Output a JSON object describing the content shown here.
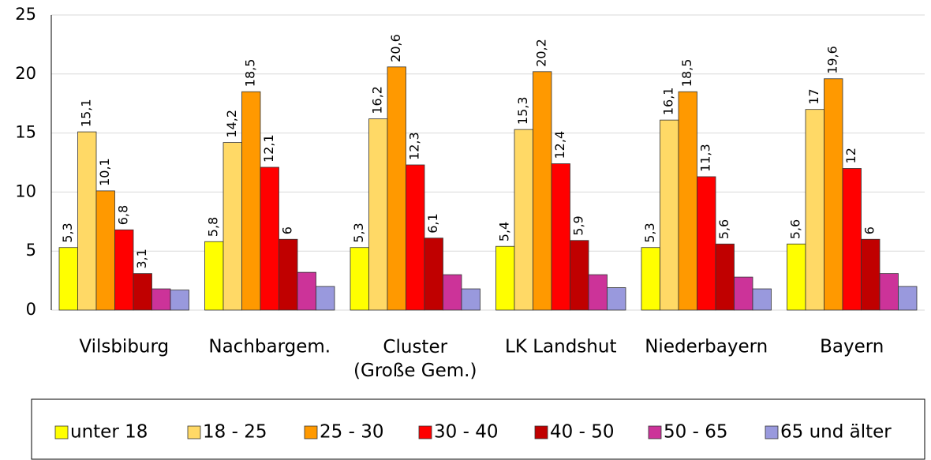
{
  "chart_data": {
    "type": "bar",
    "categories": [
      "Vilsbiburg",
      "Nachbargem.",
      "Cluster\n(Große Gem.)",
      "LK Landshut",
      "Niederbayern",
      "Bayern"
    ],
    "series": [
      {
        "name": "unter 18",
        "color": "#ffff00",
        "values": [
          5.3,
          5.8,
          5.3,
          5.4,
          5.3,
          5.6
        ],
        "value_labels": [
          "5,3",
          "5,8",
          "5,3",
          "5,4",
          "5,3",
          "5,6"
        ]
      },
      {
        "name": "18 - 25",
        "color": "#ffd966",
        "values": [
          15.1,
          14.2,
          16.2,
          15.3,
          16.1,
          17
        ],
        "value_labels": [
          "15,1",
          "14,2",
          "16,2",
          "15,3",
          "16,1",
          "17"
        ]
      },
      {
        "name": "25 - 30",
        "color": "#ff9900",
        "values": [
          10.1,
          18.5,
          20.6,
          20.2,
          18.5,
          19.6
        ],
        "value_labels": [
          "10,1",
          "18,5",
          "20,6",
          "20,2",
          "18,5",
          "19,6"
        ]
      },
      {
        "name": "30 - 40",
        "color": "#ff0000",
        "values": [
          6.8,
          12.1,
          12.3,
          12.4,
          11.3,
          12
        ],
        "value_labels": [
          "6,8",
          "12,1",
          "12,3",
          "12,4",
          "11,3",
          "12"
        ]
      },
      {
        "name": "40 - 50",
        "color": "#c00000",
        "values": [
          3.1,
          6,
          6.1,
          5.9,
          5.6,
          6
        ],
        "value_labels": [
          "3,1",
          "6",
          "6,1",
          "5,9",
          "5,6",
          "6"
        ]
      },
      {
        "name": "50 - 65",
        "color": "#cc3399",
        "values": [
          1.8,
          3.2,
          3.0,
          3.0,
          2.8,
          3.1
        ]
      },
      {
        "name": "65 und älter",
        "color": "#9999dd",
        "values": [
          1.7,
          2.0,
          1.8,
          1.9,
          1.8,
          2.0
        ]
      }
    ],
    "ylim": [
      0,
      25
    ],
    "yticks": [
      0,
      5,
      10,
      15,
      20,
      25
    ],
    "grid": true,
    "legend": "bottom"
  }
}
